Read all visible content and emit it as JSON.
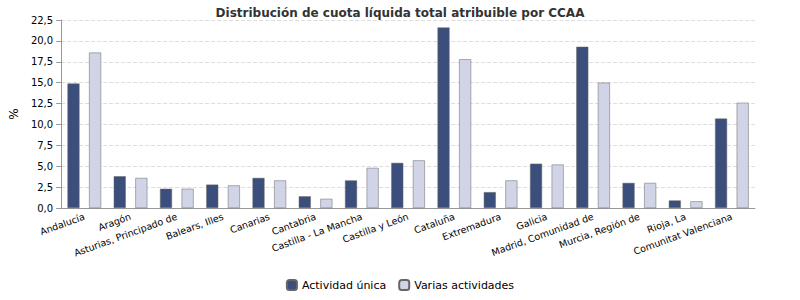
{
  "chart_data": {
    "type": "bar",
    "title": "Distribución de cuota líquida total atribuible por CCAA",
    "y_label": "%",
    "categories": [
      "Andalucía",
      "Aragón",
      "Asturias, Principado de",
      "Balears, Illes",
      "Canarias",
      "Cantabria",
      "Castilla - La Mancha",
      "Castilla y León",
      "Cataluña",
      "Extremadura",
      "Galicia",
      "Madrid, Comunidad de",
      "Murcia, Región de",
      "Rioja, La",
      "Comunitat Valenciana"
    ],
    "series": [
      {
        "name": "Actividad única",
        "color": "#3c4e7c",
        "values": [
          14.9,
          3.8,
          2.3,
          2.8,
          3.6,
          1.4,
          3.3,
          5.4,
          21.6,
          1.9,
          5.3,
          19.3,
          3.0,
          0.9,
          10.7
        ]
      },
      {
        "name": "Varias actividades",
        "color": "#d0d4e6",
        "values": [
          18.6,
          3.6,
          2.3,
          2.7,
          3.3,
          1.1,
          4.8,
          5.7,
          17.8,
          3.3,
          5.2,
          15.0,
          3.0,
          0.8,
          12.6
        ]
      }
    ],
    "ylim": [
      0,
      22.5
    ],
    "yticks": [
      {
        "value": 0,
        "label": "0,0"
      },
      {
        "value": 2.5,
        "label": "2,5"
      },
      {
        "value": 5,
        "label": "5,0"
      },
      {
        "value": 7.5,
        "label": "7,5"
      },
      {
        "value": 10,
        "label": "10,0"
      },
      {
        "value": 12.5,
        "label": "12,5"
      },
      {
        "value": 15,
        "label": "15,0"
      },
      {
        "value": 17.5,
        "label": "17,5"
      },
      {
        "value": 20,
        "label": "20,0"
      },
      {
        "value": 22.5,
        "label": "22,5"
      }
    ],
    "grid": true,
    "legend": "bottom"
  }
}
